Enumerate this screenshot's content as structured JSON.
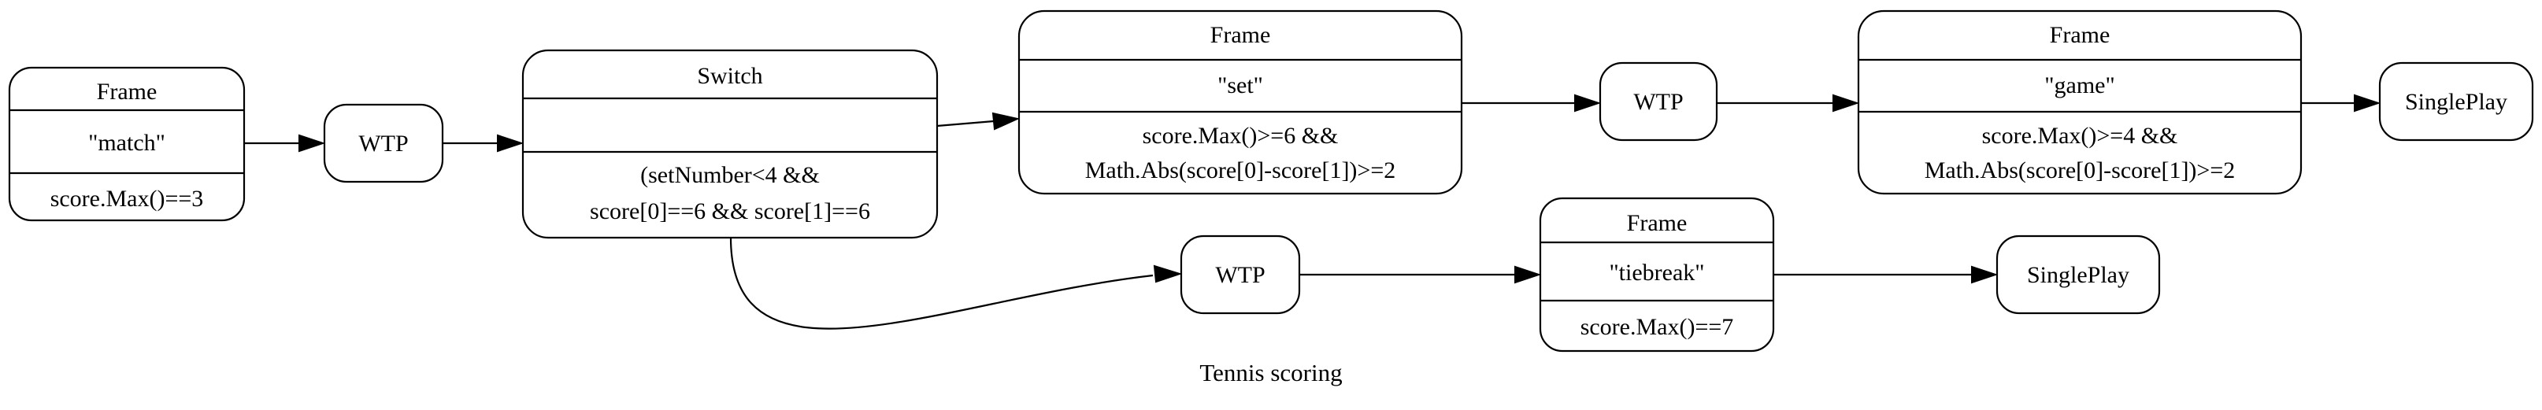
{
  "diagram": {
    "caption": "Tennis scoring",
    "nodes": {
      "match_frame": {
        "header": "Frame",
        "name": "\"match\"",
        "condition": "score.Max()==3"
      },
      "wtp_1": {
        "label": "WTP"
      },
      "switch": {
        "header": "Switch",
        "middle": "",
        "condition_line1": "(setNumber<4 &&",
        "condition_line2": "score[0]==6 && score[1]==6"
      },
      "set_frame": {
        "header": "Frame",
        "name": "\"set\"",
        "condition_line1": "score.Max()>=6 &&",
        "condition_line2": "Math.Abs(score[0]-score[1])>=2"
      },
      "wtp_2": {
        "label": "WTP"
      },
      "game_frame": {
        "header": "Frame",
        "name": "\"game\"",
        "condition_line1": "score.Max()>=4 &&",
        "condition_line2": "Math.Abs(score[0]-score[1])>=2"
      },
      "single_play_1": {
        "label": "SinglePlay"
      },
      "wtp_3": {
        "label": "WTP"
      },
      "tiebreak_frame": {
        "header": "Frame",
        "name": "\"tiebreak\"",
        "condition": "score.Max()==7"
      },
      "single_play_2": {
        "label": "SinglePlay"
      }
    },
    "edges": [
      {
        "from": "match_frame",
        "to": "wtp_1"
      },
      {
        "from": "wtp_1",
        "to": "switch"
      },
      {
        "from": "switch",
        "to": "set_frame"
      },
      {
        "from": "set_frame",
        "to": "wtp_2"
      },
      {
        "from": "wtp_2",
        "to": "game_frame"
      },
      {
        "from": "game_frame",
        "to": "single_play_1"
      },
      {
        "from": "switch",
        "to": "wtp_3"
      },
      {
        "from": "wtp_3",
        "to": "tiebreak_frame"
      },
      {
        "from": "tiebreak_frame",
        "to": "single_play_2"
      }
    ]
  }
}
